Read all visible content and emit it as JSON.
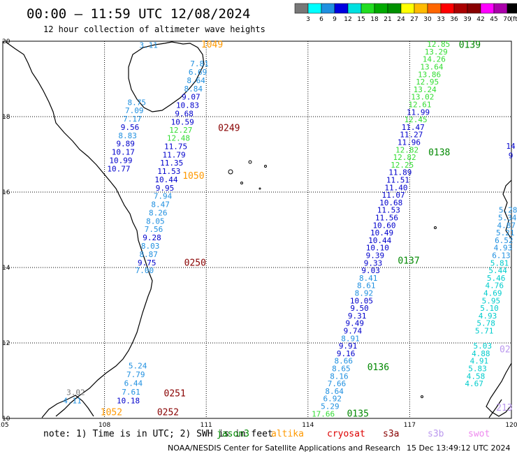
{
  "header": {
    "title": "00:00 – 11:59 UTC 12/08/2024",
    "subtitle": "12 hour collection of altimeter wave heights"
  },
  "legend": {
    "unit": "(ft)",
    "labels": [
      "3",
      "6",
      "9",
      "12",
      "15",
      "18",
      "21",
      "24",
      "27",
      "30",
      "33",
      "36",
      "39",
      "42",
      "45",
      "70"
    ],
    "colors": [
      "#777777",
      "#00ffff",
      "#2090e0",
      "#0000e0",
      "#00e0e0",
      "#22dd22",
      "#00aa00",
      "#009000",
      "#ffff00",
      "#ffbb00",
      "#ff6600",
      "#ff0000",
      "#aa0000",
      "#880000",
      "#ff00ff",
      "#aa00aa",
      "#000000"
    ]
  },
  "axes": {
    "lon_labels": [
      "105",
      "108",
      "111",
      "114",
      "117",
      "120"
    ],
    "lat_labels": [
      "20",
      "18",
      "16",
      "14",
      "12",
      "10"
    ]
  },
  "footer": {
    "note_prefix": "note: 1) Time is in UTC; 2) SWH is in feet",
    "satellites": [
      {
        "name": "jason3",
        "color": "#008800"
      },
      {
        "name": "altika",
        "color": "#ff9900"
      },
      {
        "name": "cryosat",
        "color": "#dd0000"
      },
      {
        "name": "s3a",
        "color": "#880000"
      },
      {
        "name": "s3b",
        "color": "#bb99ee"
      },
      {
        "name": "swot",
        "color": "#ee88ee"
      }
    ],
    "credit": "NOAA/NESDIS Center for Satellite Applications and Research",
    "timestamp": "15 Dec 13:49:12 UTC 2024"
  },
  "passes": [
    {
      "label": "0249",
      "color": "#880000",
      "lon": 111.35,
      "lat": 17.62
    },
    {
      "label": "1049",
      "color": "#ff9900",
      "lon": 110.85,
      "lat": 19.83
    },
    {
      "label": "1050",
      "color": "#ff9900",
      "lon": 110.3,
      "lat": 16.35
    },
    {
      "label": "0250",
      "color": "#880000",
      "lon": 110.35,
      "lat": 14.05
    },
    {
      "label": "0251",
      "color": "#880000",
      "lon": 109.75,
      "lat": 10.58
    },
    {
      "label": "0252",
      "color": "#880000",
      "lon": 109.55,
      "lat": 10.08
    },
    {
      "label": "1052",
      "color": "#ff9900",
      "lon": 107.88,
      "lat": 10.08
    },
    {
      "label": "0139",
      "color": "#008800",
      "lon": 118.45,
      "lat": 19.82
    },
    {
      "label": "0138",
      "color": "#008800",
      "lon": 117.55,
      "lat": 16.97
    },
    {
      "label": "0137",
      "color": "#008800",
      "lon": 116.65,
      "lat": 14.1
    },
    {
      "label": "0136",
      "color": "#008800",
      "lon": 115.75,
      "lat": 11.28
    },
    {
      "label": "0135",
      "color": "#008800",
      "lon": 115.15,
      "lat": 10.05
    },
    {
      "label": "02",
      "color": "#bb99ee",
      "lon": 119.65,
      "lat": 11.75
    },
    {
      "label": "213",
      "color": "#bb99ee",
      "lon": 119.55,
      "lat": 10.2
    }
  ],
  "wave_heights": [
    {
      "value": "3.11",
      "color": "#2090e0",
      "lon": 109.3,
      "lat": 19.82
    },
    {
      "value": "7.81",
      "color": "#2090e0",
      "lon": 110.8,
      "lat": 19.33
    },
    {
      "value": "6.69",
      "color": "#2090e0",
      "lon": 110.75,
      "lat": 19.11
    },
    {
      "value": "8.64",
      "color": "#2090e0",
      "lon": 110.7,
      "lat": 18.89
    },
    {
      "value": "8.84",
      "color": "#2090e0",
      "lon": 110.62,
      "lat": 18.67
    },
    {
      "value": "9.07",
      "color": "#0000cc",
      "lon": 110.55,
      "lat": 18.45
    },
    {
      "value": "10.83",
      "color": "#0000cc",
      "lon": 110.45,
      "lat": 18.23
    },
    {
      "value": "9.68",
      "color": "#0000cc",
      "lon": 110.35,
      "lat": 18.01
    },
    {
      "value": "10.59",
      "color": "#0000cc",
      "lon": 110.3,
      "lat": 17.79
    },
    {
      "value": "12.27",
      "color": "#33dd33",
      "lon": 110.25,
      "lat": 17.57
    },
    {
      "value": "12.48",
      "color": "#33dd33",
      "lon": 110.18,
      "lat": 17.36
    },
    {
      "value": "11.75",
      "color": "#0000cc",
      "lon": 110.1,
      "lat": 17.14
    },
    {
      "value": "11.79",
      "color": "#0000cc",
      "lon": 110.05,
      "lat": 16.92
    },
    {
      "value": "11.35",
      "color": "#0000cc",
      "lon": 109.98,
      "lat": 16.7
    },
    {
      "value": "11.53",
      "color": "#0000cc",
      "lon": 109.9,
      "lat": 16.48
    },
    {
      "value": "10.44",
      "color": "#0000cc",
      "lon": 109.82,
      "lat": 16.26
    },
    {
      "value": "9.95",
      "color": "#0000cc",
      "lon": 109.78,
      "lat": 16.04
    },
    {
      "value": "7.94",
      "color": "#2090e0",
      "lon": 109.72,
      "lat": 15.82
    },
    {
      "value": "8.47",
      "color": "#2090e0",
      "lon": 109.65,
      "lat": 15.6
    },
    {
      "value": "8.26",
      "color": "#2090e0",
      "lon": 109.58,
      "lat": 15.38
    },
    {
      "value": "8.05",
      "color": "#2090e0",
      "lon": 109.5,
      "lat": 15.16
    },
    {
      "value": "7.56",
      "color": "#2090e0",
      "lon": 109.45,
      "lat": 14.94
    },
    {
      "value": "9.28",
      "color": "#0000cc",
      "lon": 109.4,
      "lat": 14.72
    },
    {
      "value": "8.03",
      "color": "#2090e0",
      "lon": 109.35,
      "lat": 14.5
    },
    {
      "value": "8.87",
      "color": "#2090e0",
      "lon": 109.3,
      "lat": 14.28
    },
    {
      "value": "9.75",
      "color": "#0000cc",
      "lon": 109.25,
      "lat": 14.06
    },
    {
      "value": "7.00",
      "color": "#2090e0",
      "lon": 109.18,
      "lat": 13.85
    },
    {
      "value": "8.75",
      "color": "#2090e0",
      "lon": 108.95,
      "lat": 18.31
    },
    {
      "value": "7.09",
      "color": "#2090e0",
      "lon": 108.88,
      "lat": 18.09
    },
    {
      "value": "7.17",
      "color": "#2090e0",
      "lon": 108.82,
      "lat": 17.87
    },
    {
      "value": "9.56",
      "color": "#0000cc",
      "lon": 108.75,
      "lat": 17.65
    },
    {
      "value": "8.83",
      "color": "#2090e0",
      "lon": 108.68,
      "lat": 17.43
    },
    {
      "value": "9.89",
      "color": "#0000cc",
      "lon": 108.62,
      "lat": 17.21
    },
    {
      "value": "10.17",
      "color": "#0000cc",
      "lon": 108.55,
      "lat": 16.99
    },
    {
      "value": "10.99",
      "color": "#0000cc",
      "lon": 108.48,
      "lat": 16.77
    },
    {
      "value": "10.77",
      "color": "#0000cc",
      "lon": 108.42,
      "lat": 16.55
    },
    {
      "value": "5.24",
      "color": "#2090e0",
      "lon": 108.98,
      "lat": 11.32
    },
    {
      "value": "7.79",
      "color": "#2090e0",
      "lon": 108.92,
      "lat": 11.09
    },
    {
      "value": "6.44",
      "color": "#2090e0",
      "lon": 108.85,
      "lat": 10.86
    },
    {
      "value": "7.61",
      "color": "#2090e0",
      "lon": 108.78,
      "lat": 10.63
    },
    {
      "value": "10.18",
      "color": "#0000cc",
      "lon": 108.7,
      "lat": 10.4
    },
    {
      "value": "3.02",
      "color": "#777777",
      "lon": 107.15,
      "lat": 10.62
    },
    {
      "value": "4.11",
      "color": "#2090e0",
      "lon": 107.05,
      "lat": 10.4
    },
    {
      "value": "12.85",
      "color": "#33dd33",
      "lon": 117.85,
      "lat": 19.85
    },
    {
      "value": "13.29",
      "color": "#33dd33",
      "lon": 117.78,
      "lat": 19.65
    },
    {
      "value": "14.26",
      "color": "#33dd33",
      "lon": 117.72,
      "lat": 19.45
    },
    {
      "value": "13.64",
      "color": "#33dd33",
      "lon": 117.65,
      "lat": 19.25
    },
    {
      "value": "13.86",
      "color": "#33dd33",
      "lon": 117.58,
      "lat": 19.05
    },
    {
      "value": "12.95",
      "color": "#33dd33",
      "lon": 117.52,
      "lat": 18.85
    },
    {
      "value": "13.24",
      "color": "#33dd33",
      "lon": 117.45,
      "lat": 18.65
    },
    {
      "value": "13.02",
      "color": "#33dd33",
      "lon": 117.38,
      "lat": 18.45
    },
    {
      "value": "12.61",
      "color": "#33dd33",
      "lon": 117.3,
      "lat": 18.25
    },
    {
      "value": "11.99",
      "color": "#0000cc",
      "lon": 117.25,
      "lat": 18.05
    },
    {
      "value": "12.45",
      "color": "#33dd33",
      "lon": 117.18,
      "lat": 17.85
    },
    {
      "value": "11.47",
      "color": "#0000cc",
      "lon": 117.1,
      "lat": 17.65
    },
    {
      "value": "11.27",
      "color": "#0000cc",
      "lon": 117.05,
      "lat": 17.45
    },
    {
      "value": "11.96",
      "color": "#0000cc",
      "lon": 116.98,
      "lat": 17.25
    },
    {
      "value": "12.82",
      "color": "#33dd33",
      "lon": 116.92,
      "lat": 17.05
    },
    {
      "value": "12.82",
      "color": "#33dd33",
      "lon": 116.85,
      "lat": 16.85
    },
    {
      "value": "12.25",
      "color": "#33dd33",
      "lon": 116.78,
      "lat": 16.65
    },
    {
      "value": "11.89",
      "color": "#0000cc",
      "lon": 116.72,
      "lat": 16.45
    },
    {
      "value": "11.51",
      "color": "#0000cc",
      "lon": 116.65,
      "lat": 16.25
    },
    {
      "value": "11.40",
      "color": "#0000cc",
      "lon": 116.6,
      "lat": 16.05
    },
    {
      "value": "11.07",
      "color": "#0000cc",
      "lon": 116.52,
      "lat": 15.85
    },
    {
      "value": "10.68",
      "color": "#0000cc",
      "lon": 116.45,
      "lat": 15.65
    },
    {
      "value": "11.53",
      "color": "#0000cc",
      "lon": 116.38,
      "lat": 15.45
    },
    {
      "value": "11.56",
      "color": "#0000cc",
      "lon": 116.32,
      "lat": 15.25
    },
    {
      "value": "10.60",
      "color": "#0000cc",
      "lon": 116.25,
      "lat": 15.05
    },
    {
      "value": "10.49",
      "color": "#0000cc",
      "lon": 116.18,
      "lat": 14.85
    },
    {
      "value": "10.44",
      "color": "#0000cc",
      "lon": 116.12,
      "lat": 14.65
    },
    {
      "value": "10.10",
      "color": "#0000cc",
      "lon": 116.05,
      "lat": 14.45
    },
    {
      "value": "9.39",
      "color": "#0000cc",
      "lon": 115.98,
      "lat": 14.25
    },
    {
      "value": "9.33",
      "color": "#0000cc",
      "lon": 115.92,
      "lat": 14.05
    },
    {
      "value": "9.03",
      "color": "#0000cc",
      "lon": 115.85,
      "lat": 13.85
    },
    {
      "value": "8.41",
      "color": "#2090e0",
      "lon": 115.78,
      "lat": 13.65
    },
    {
      "value": "8.61",
      "color": "#2090e0",
      "lon": 115.72,
      "lat": 13.45
    },
    {
      "value": "8.92",
      "color": "#2090e0",
      "lon": 115.65,
      "lat": 13.25
    },
    {
      "value": "10.05",
      "color": "#0000cc",
      "lon": 115.58,
      "lat": 13.05
    },
    {
      "value": "9.50",
      "color": "#0000cc",
      "lon": 115.52,
      "lat": 12.85
    },
    {
      "value": "9.31",
      "color": "#0000cc",
      "lon": 115.45,
      "lat": 12.65
    },
    {
      "value": "9.49",
      "color": "#0000cc",
      "lon": 115.38,
      "lat": 12.45
    },
    {
      "value": "9.74",
      "color": "#0000cc",
      "lon": 115.32,
      "lat": 12.25
    },
    {
      "value": "8.91",
      "color": "#2090e0",
      "lon": 115.25,
      "lat": 12.05
    },
    {
      "value": "9.91",
      "color": "#0000cc",
      "lon": 115.18,
      "lat": 11.85
    },
    {
      "value": "9.16",
      "color": "#0000cc",
      "lon": 115.12,
      "lat": 11.65
    },
    {
      "value": "8.66",
      "color": "#2090e0",
      "lon": 115.05,
      "lat": 11.45
    },
    {
      "value": "8.65",
      "color": "#2090e0",
      "lon": 114.98,
      "lat": 11.25
    },
    {
      "value": "8.16",
      "color": "#2090e0",
      "lon": 114.92,
      "lat": 11.05
    },
    {
      "value": "7.66",
      "color": "#2090e0",
      "lon": 114.85,
      "lat": 10.85
    },
    {
      "value": "8.64",
      "color": "#2090e0",
      "lon": 114.78,
      "lat": 10.65
    },
    {
      "value": "6.92",
      "color": "#2090e0",
      "lon": 114.72,
      "lat": 10.45
    },
    {
      "value": "5.29",
      "color": "#2090e0",
      "lon": 114.65,
      "lat": 10.25
    },
    {
      "value": "17.66",
      "color": "#33dd33",
      "lon": 114.45,
      "lat": 10.05
    },
    {
      "value": "5.28",
      "color": "#2090e0",
      "lon": 119.9,
      "lat": 15.45
    },
    {
      "value": "5.34",
      "color": "#2090e0",
      "lon": 119.88,
      "lat": 15.25
    },
    {
      "value": "4.87",
      "color": "#2090e0",
      "lon": 119.85,
      "lat": 15.05
    },
    {
      "value": "5.21",
      "color": "#2090e0",
      "lon": 119.82,
      "lat": 14.85
    },
    {
      "value": "6.52",
      "color": "#2090e0",
      "lon": 119.78,
      "lat": 14.65
    },
    {
      "value": "4.93",
      "color": "#2090e0",
      "lon": 119.75,
      "lat": 14.45
    },
    {
      "value": "6.13",
      "color": "#2090e0",
      "lon": 119.7,
      "lat": 14.25
    },
    {
      "value": "5.81",
      "color": "#00cccc",
      "lon": 119.65,
      "lat": 14.05
    },
    {
      "value": "5.44",
      "color": "#00cccc",
      "lon": 119.6,
      "lat": 13.85
    },
    {
      "value": "5.46",
      "color": "#00cccc",
      "lon": 119.55,
      "lat": 13.65
    },
    {
      "value": "4.76",
      "color": "#00cccc",
      "lon": 119.5,
      "lat": 13.45
    },
    {
      "value": "4.69",
      "color": "#00cccc",
      "lon": 119.45,
      "lat": 13.25
    },
    {
      "value": "5.95",
      "color": "#00cccc",
      "lon": 119.4,
      "lat": 13.05
    },
    {
      "value": "5.10",
      "color": "#00cccc",
      "lon": 119.35,
      "lat": 12.85
    },
    {
      "value": "4.93",
      "color": "#00cccc",
      "lon": 119.3,
      "lat": 12.65
    },
    {
      "value": "5.78",
      "color": "#00cccc",
      "lon": 119.25,
      "lat": 12.45
    },
    {
      "value": "5.71",
      "color": "#00cccc",
      "lon": 119.2,
      "lat": 12.25
    },
    {
      "value": "5.03",
      "color": "#00cccc",
      "lon": 119.15,
      "lat": 11.85
    },
    {
      "value": "4.88",
      "color": "#00cccc",
      "lon": 119.1,
      "lat": 11.65
    },
    {
      "value": "4.91",
      "color": "#00cccc",
      "lon": 119.05,
      "lat": 11.45
    },
    {
      "value": "5.83",
      "color": "#00cccc",
      "lon": 119.0,
      "lat": 11.25
    },
    {
      "value": "4.58",
      "color": "#00cccc",
      "lon": 118.95,
      "lat": 11.05
    },
    {
      "value": "4.67",
      "color": "#00cccc",
      "lon": 118.9,
      "lat": 10.85
    }
  ],
  "edge_fragments": [
    {
      "value": "14",
      "color": "#0000cc",
      "lon": 119.98,
      "lat": 17.15
    },
    {
      "value": "9",
      "color": "#0000cc",
      "lon": 119.98,
      "lat": 16.9
    }
  ]
}
